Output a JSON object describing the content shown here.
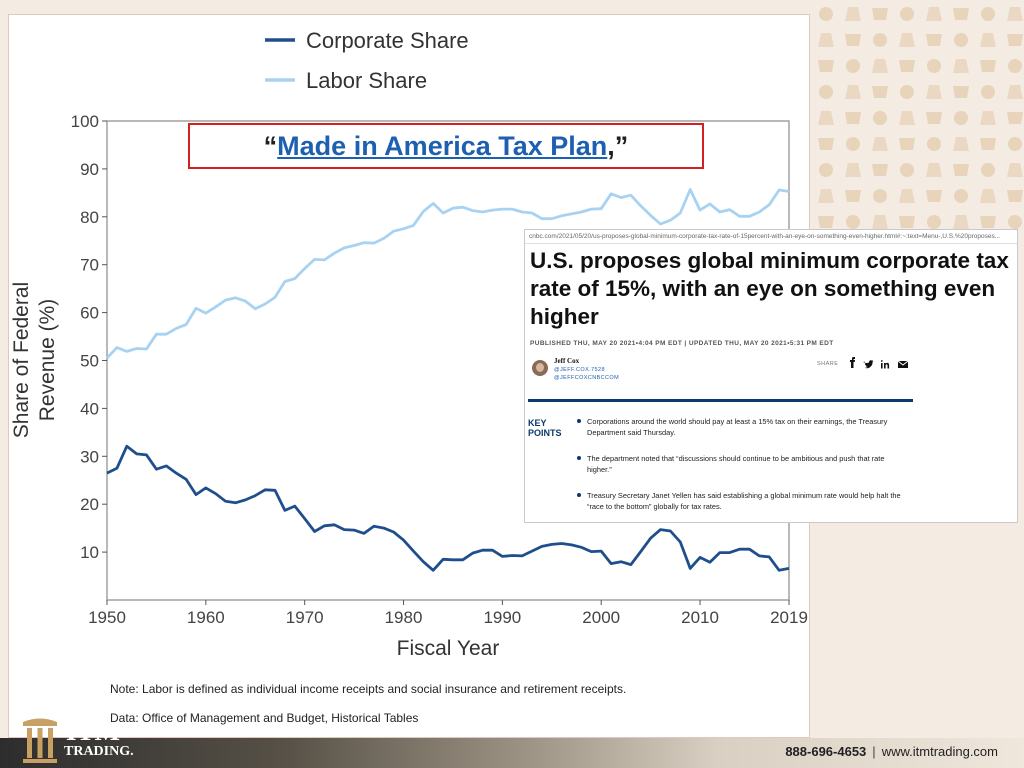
{
  "chart_data": {
    "type": "line",
    "xlabel": "Fiscal Year",
    "ylabel": "Share of Federal Revenue (%)",
    "ylabel_lines": [
      "Share of Federal",
      "Revenue (%)"
    ],
    "xlim": [
      1950,
      2019
    ],
    "ylim": [
      0,
      100
    ],
    "x_ticks": [
      1950,
      1960,
      1970,
      1980,
      1990,
      2000,
      2010,
      2019
    ],
    "y_ticks": [
      10,
      20,
      30,
      40,
      50,
      60,
      70,
      80,
      90,
      100
    ],
    "grid": false,
    "legend_position": "top",
    "series": [
      {
        "name": "Corporate Share",
        "color": "#1f4e8c",
        "x": [
          1950,
          1951,
          1952,
          1953,
          1954,
          1955,
          1956,
          1957,
          1958,
          1959,
          1960,
          1961,
          1962,
          1963,
          1964,
          1965,
          1966,
          1967,
          1968,
          1969,
          1970,
          1971,
          1972,
          1973,
          1974,
          1975,
          1976,
          1977,
          1978,
          1979,
          1980,
          1981,
          1982,
          1983,
          1984,
          1985,
          1986,
          1987,
          1988,
          1989,
          1990,
          1991,
          1992,
          1993,
          1994,
          1995,
          1996,
          1997,
          1998,
          1999,
          2000,
          2001,
          2002,
          2003,
          2004,
          2005,
          2006,
          2007,
          2008,
          2009,
          2010,
          2011,
          2012,
          2013,
          2014,
          2015,
          2016,
          2017,
          2018,
          2019
        ],
        "values": [
          26.5,
          27.5,
          32.1,
          30.5,
          30.3,
          27.3,
          28.0,
          26.5,
          25.2,
          22.0,
          23.4,
          22.2,
          20.6,
          20.3,
          20.9,
          21.8,
          23.0,
          22.9,
          18.7,
          19.6,
          17.0,
          14.3,
          15.5,
          15.7,
          14.7,
          14.6,
          13.9,
          15.4,
          15.0,
          14.2,
          12.5,
          10.2,
          8.0,
          6.2,
          8.5,
          8.4,
          8.4,
          9.8,
          10.4,
          10.4,
          9.1,
          9.3,
          9.2,
          10.2,
          11.2,
          11.6,
          11.8,
          11.5,
          11.0,
          10.1,
          10.2,
          7.6,
          8.0,
          7.4,
          10.1,
          12.9,
          14.7,
          14.4,
          12.1,
          6.6,
          8.9,
          7.9,
          9.9,
          9.9,
          10.6,
          10.6,
          9.2,
          9.0,
          6.2,
          6.6
        ]
      },
      {
        "name": "Labor Share",
        "color": "#a8d2f2",
        "x": [
          1950,
          1951,
          1952,
          1953,
          1954,
          1955,
          1956,
          1957,
          1958,
          1959,
          1960,
          1961,
          1962,
          1963,
          1964,
          1965,
          1966,
          1967,
          1968,
          1969,
          1970,
          1971,
          1972,
          1973,
          1974,
          1975,
          1976,
          1977,
          1978,
          1979,
          1980,
          1981,
          1982,
          1983,
          1984,
          1985,
          1986,
          1987,
          1988,
          1989,
          1990,
          1991,
          1992,
          1993,
          1994,
          1995,
          1996,
          1997,
          1998,
          1999,
          2000,
          2001,
          2002,
          2003,
          2004,
          2005,
          2006,
          2007,
          2008,
          2009,
          2010,
          2011,
          2012,
          2013,
          2014,
          2015,
          2016,
          2017,
          2018,
          2019
        ],
        "values": [
          50.5,
          52.7,
          51.9,
          52.5,
          52.4,
          55.5,
          55.5,
          56.7,
          57.5,
          60.9,
          59.9,
          61.2,
          62.6,
          63.1,
          62.4,
          60.8,
          61.8,
          63.2,
          66.5,
          67.1,
          69.2,
          71.1,
          71.0,
          72.4,
          73.5,
          74.0,
          74.6,
          74.5,
          75.5,
          77.0,
          77.5,
          78.2,
          81.1,
          82.8,
          80.8,
          81.8,
          82.0,
          81.3,
          81.0,
          81.4,
          81.6,
          81.6,
          81.0,
          80.8,
          79.6,
          79.6,
          80.2,
          80.6,
          81.0,
          81.6,
          81.7,
          84.8,
          84.0,
          84.5,
          82.3,
          80.3,
          78.5,
          79.3,
          80.8,
          85.7,
          81.4,
          82.7,
          81.0,
          81.5,
          80.1,
          80.1,
          81.0,
          82.5,
          85.6,
          85.3
        ]
      }
    ]
  },
  "notes": {
    "note": "Note: Labor is defined as individual income receipts and social insurance and retirement receipts.",
    "data_source": "Data: Office of Management and Budget, Historical Tables"
  },
  "headline": {
    "open_quote": "“",
    "link_text": "Made in America Tax Plan",
    "close_quote": ",”",
    "link_color": "#1d5fb0",
    "border_color": "#d42020"
  },
  "article": {
    "url": "cnbc.com/2021/05/20/us-proposes-global-minimum-corporate-tax-rate-of-15percent-with-an-eye-on-something-even-higher.html#:~:text=Menu-,U.S.%20proposes...",
    "title": "U.S. proposes global minimum corporate tax rate of 15%, with an eye on something even higher",
    "dates": "PUBLISHED THU, MAY 20 2021•4:04 PM EDT | UPDATED THU, MAY 20 2021•5:31 PM EDT",
    "author": "Jeff Cox",
    "handle_1": "@JEFF.COX.7528",
    "handle_2": "@JEFFCOXCNBCCOM",
    "share_label": "SHARE",
    "key_points_label": "KEY POINTS",
    "key_points": [
      "Corporations around the world should pay at least a 15% tax on their earnings, the Treasury Department said Thursday.",
      "The department noted that “discussions should continue to be ambitious and push that rate higher.”",
      "Treasury Secretary Janet Yellen has said establishing a global minimum rate would help halt the “race to the bottom” globally for tax rates."
    ],
    "accent_color": "#0a3a6b"
  },
  "footer": {
    "brand": "ITM",
    "brand_sub": "TRADING.",
    "phone": "888-696-4653",
    "separator": "|",
    "website": "www.itmtrading.com"
  }
}
